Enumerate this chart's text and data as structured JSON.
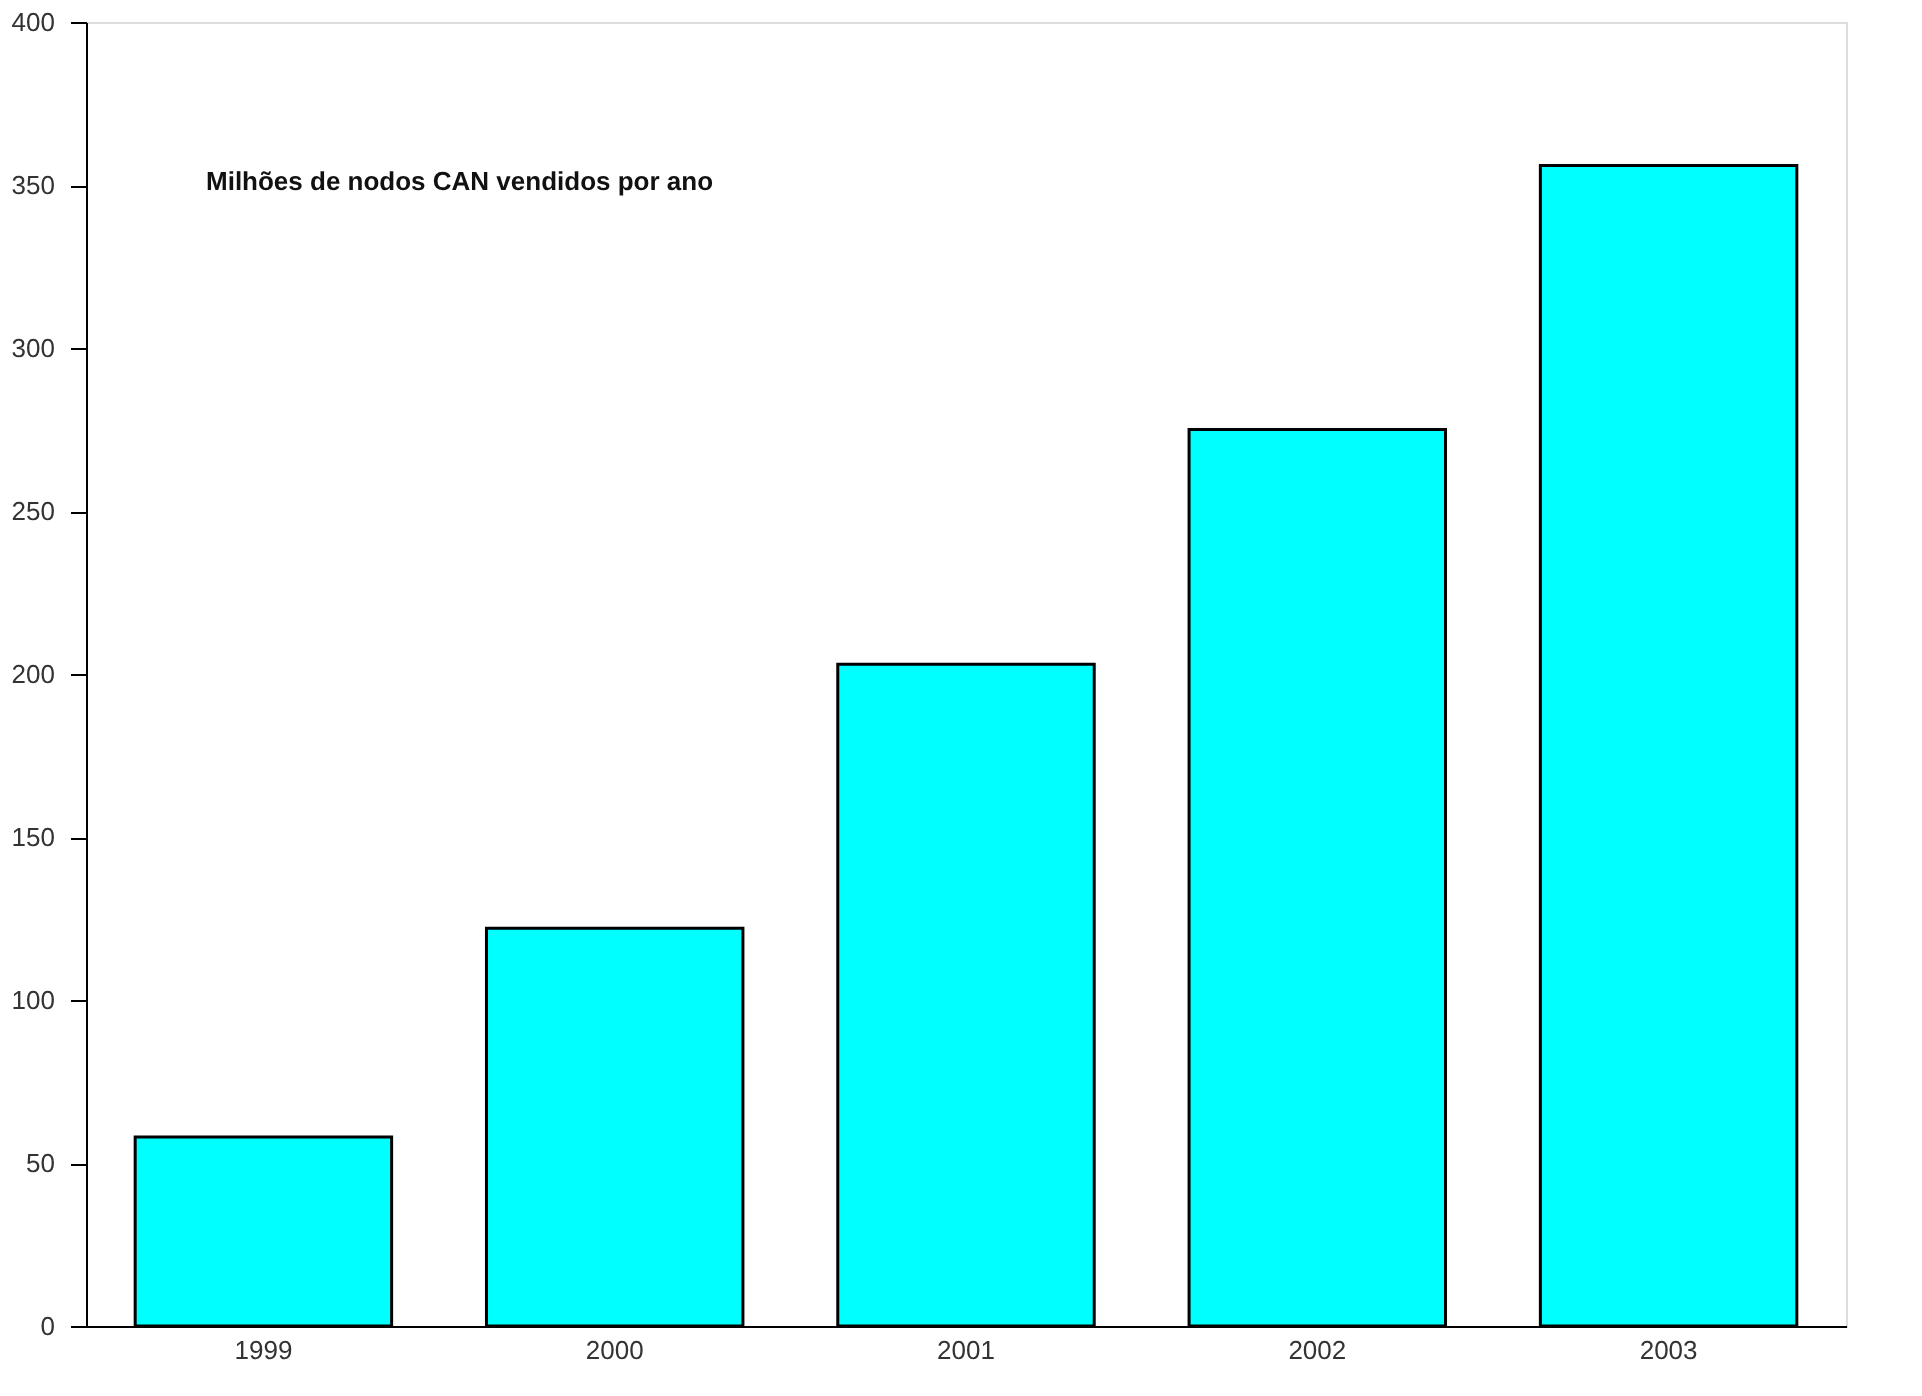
{
  "chart_data": {
    "type": "bar",
    "title": "Milhões de nodos CAN vendidos por ano",
    "categories": [
      "1999",
      "2000",
      "2001",
      "2002",
      "2003"
    ],
    "values": [
      58,
      122,
      203,
      275,
      356
    ],
    "color": "#00ffff",
    "ylim": [
      0,
      400
    ],
    "yticks": [
      0,
      50,
      100,
      150,
      200,
      250,
      300,
      350,
      400
    ],
    "grid": false
  }
}
